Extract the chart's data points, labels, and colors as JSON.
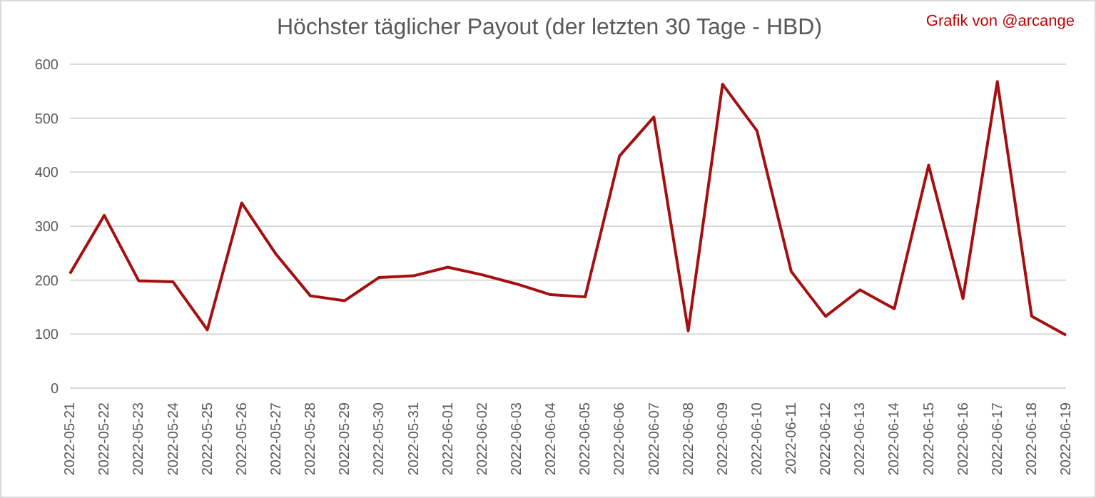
{
  "chart_data": {
    "type": "line",
    "title": "Höchster täglicher Payout (der letzten 30 Tage - HBD)",
    "annotations": [
      "Grafik von @arcange"
    ],
    "categories": [
      "2022-05-21",
      "2022-05-22",
      "2022-05-23",
      "2022-05-24",
      "2022-05-25",
      "2022-05-26",
      "2022-05-27",
      "2022-05-28",
      "2022-05-29",
      "2022-05-30",
      "2022-05-31",
      "2022-06-01",
      "2022-06-02",
      "2022-06-03",
      "2022-06-04",
      "2022-06-05",
      "2022-06-06",
      "2022-06-07",
      "2022-06-08",
      "2022-06-09",
      "2022-06-10",
      "2022-06-11",
      "2022-06-12",
      "2022-06-13",
      "2022-06-14",
      "2022-06-15",
      "2022-06-16",
      "2022-06-17",
      "2022-06-18",
      "2022-06-19"
    ],
    "series": [
      {
        "color": "#a50f0f",
        "values": [
          212,
          320,
          199,
          197,
          108,
          343,
          248,
          171,
          162,
          205,
          208,
          224,
          210,
          193,
          173,
          169,
          430,
          502,
          106,
          563,
          477,
          216,
          133,
          182,
          147,
          413,
          166,
          568,
          133,
          98
        ]
      }
    ],
    "ylim": [
      0,
      600
    ],
    "yticks": [
      0,
      100,
      200,
      300,
      400,
      500,
      600
    ],
    "grid": "y",
    "marker": "none",
    "line_style": "solid"
  }
}
